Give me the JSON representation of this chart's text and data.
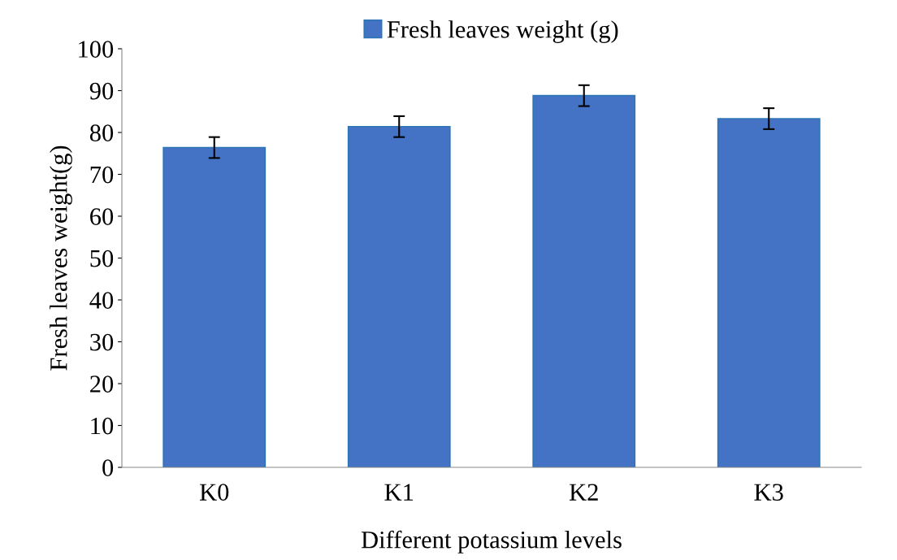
{
  "chart_data": {
    "type": "bar",
    "xlabel": "Different potassium levels",
    "ylabel": "Fresh leaves weight(g)",
    "categories": [
      "K0",
      "K1",
      "K2",
      "K3"
    ],
    "series": [
      {
        "name": "Fresh leaves weight (g)",
        "color": "#4472c4",
        "values": [
          76.4,
          81.4,
          88.8,
          83.3
        ],
        "errors": [
          2.5,
          2.5,
          2.5,
          2.5
        ]
      }
    ],
    "ylim": [
      0,
      100
    ],
    "yticks": [
      0,
      10,
      20,
      30,
      40,
      50,
      60,
      70,
      80,
      90,
      100
    ],
    "grid": false,
    "legend": "top"
  }
}
